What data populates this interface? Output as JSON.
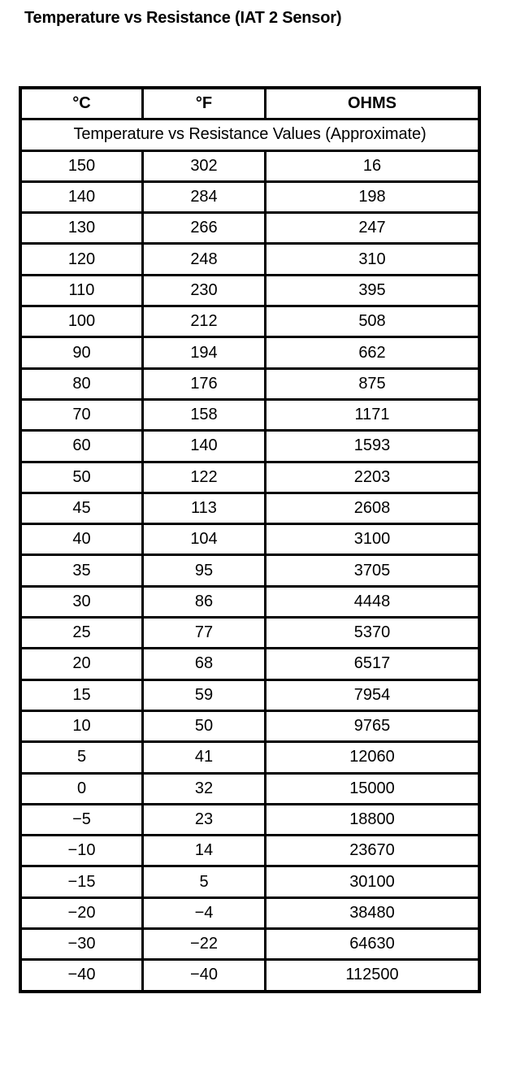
{
  "title": "Temperature vs Resistance (IAT 2 Sensor)",
  "headers": [
    "°C",
    "°F",
    "OHMS"
  ],
  "subheader": "Temperature vs Resistance Values (Approximate)",
  "rows": [
    [
      "150",
      "302",
      "16"
    ],
    [
      "140",
      "284",
      "198"
    ],
    [
      "130",
      "266",
      "247"
    ],
    [
      "120",
      "248",
      "310"
    ],
    [
      "110",
      "230",
      "395"
    ],
    [
      "100",
      "212",
      "508"
    ],
    [
      "90",
      "194",
      "662"
    ],
    [
      "80",
      "176",
      "875"
    ],
    [
      "70",
      "158",
      "1171"
    ],
    [
      "60",
      "140",
      "1593"
    ],
    [
      "50",
      "122",
      "2203"
    ],
    [
      "45",
      "113",
      "2608"
    ],
    [
      "40",
      "104",
      "3100"
    ],
    [
      "35",
      "95",
      "3705"
    ],
    [
      "30",
      "86",
      "4448"
    ],
    [
      "25",
      "77",
      "5370"
    ],
    [
      "20",
      "68",
      "6517"
    ],
    [
      "15",
      "59",
      "7954"
    ],
    [
      "10",
      "50",
      "9765"
    ],
    [
      "5",
      "41",
      "12060"
    ],
    [
      "0",
      "32",
      "15000"
    ],
    [
      "−5",
      "23",
      "18800"
    ],
    [
      "−10",
      "14",
      "23670"
    ],
    [
      "−15",
      "5",
      "30100"
    ],
    [
      "−20",
      "−4",
      "38480"
    ],
    [
      "−30",
      "−22",
      "64630"
    ],
    [
      "−40",
      "−40",
      "112500"
    ]
  ]
}
